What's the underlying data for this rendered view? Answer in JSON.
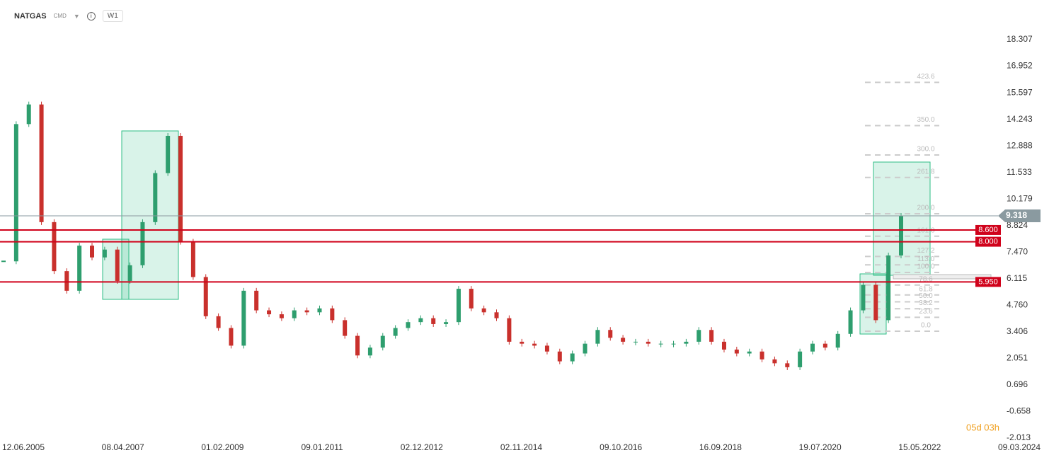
{
  "header": {
    "symbol": "NATGAS",
    "market": "CMD",
    "timeframe": "W1"
  },
  "chart_data": {
    "type": "candlestick",
    "values": [
      7.0,
      14.0,
      15.0,
      9.0,
      6.5,
      5.5,
      7.8,
      7.2,
      7.6,
      6.0,
      6.8,
      9.0,
      11.5,
      13.4,
      8.0,
      6.2,
      4.2,
      3.6,
      2.7,
      5.5,
      4.5,
      4.3,
      4.1,
      4.5,
      4.4,
      4.6,
      4.0,
      3.2,
      2.2,
      2.6,
      3.2,
      3.6,
      3.9,
      4.1,
      3.8,
      3.9,
      5.6,
      4.6,
      4.4,
      4.1,
      2.9,
      2.8,
      2.7,
      2.4,
      1.9,
      2.3,
      2.8,
      3.5,
      3.1,
      2.9,
      2.9,
      2.8,
      2.8,
      2.8,
      2.9,
      3.5,
      2.9,
      2.5,
      2.3,
      2.4,
      2.0,
      1.8,
      1.6,
      2.4,
      2.8,
      2.6,
      3.3,
      4.5,
      5.8,
      4.0,
      7.3,
      9.318
    ],
    "up_color": "#2e9e6e",
    "down_color": "#c9302c",
    "ylim": [
      -2.013,
      18.307
    ],
    "yticks": [
      18.307,
      16.952,
      15.597,
      14.243,
      12.888,
      11.533,
      10.179,
      8.824,
      {
        "value": 7.47,
        "label": "7.470"
      },
      6.115,
      {
        "value": 4.76,
        "label": "4.760"
      },
      3.406,
      2.051,
      0.696,
      -0.658,
      -2.013
    ],
    "xticks": [
      "12.06.2005",
      "08.04.2007",
      "01.02.2009",
      "09.01.2011",
      "02.12.2012",
      "02.11.2014",
      "09.10.2016",
      "16.09.2018",
      "19.07.2020",
      "15.05.2022",
      "09.03.2024"
    ],
    "last_price": 9.318,
    "levels": [
      {
        "value": 8.6,
        "label": "8.600"
      },
      {
        "value": 8,
        "label": "8.000"
      },
      {
        "value": 5.95,
        "label": "5.950"
      }
    ],
    "level_color": "#d0021b",
    "fib_levels": [
      423.6,
      {
        "value": 350,
        "label": "350.0"
      },
      {
        "value": 300,
        "label": "300.0"
      },
      261.8,
      {
        "value": 200,
        "label": "200.0"
      },
      161.8,
      127.2,
      {
        "value": 113,
        "label": "113.0"
      },
      {
        "value": 100,
        "label": "100.0"
      },
      78.6,
      61.8,
      {
        "value": 50,
        "label": "50.0"
      },
      38.2,
      23.6,
      {
        "value": 0,
        "label": "0.0"
      }
    ],
    "countdown": "05d 03h"
  }
}
